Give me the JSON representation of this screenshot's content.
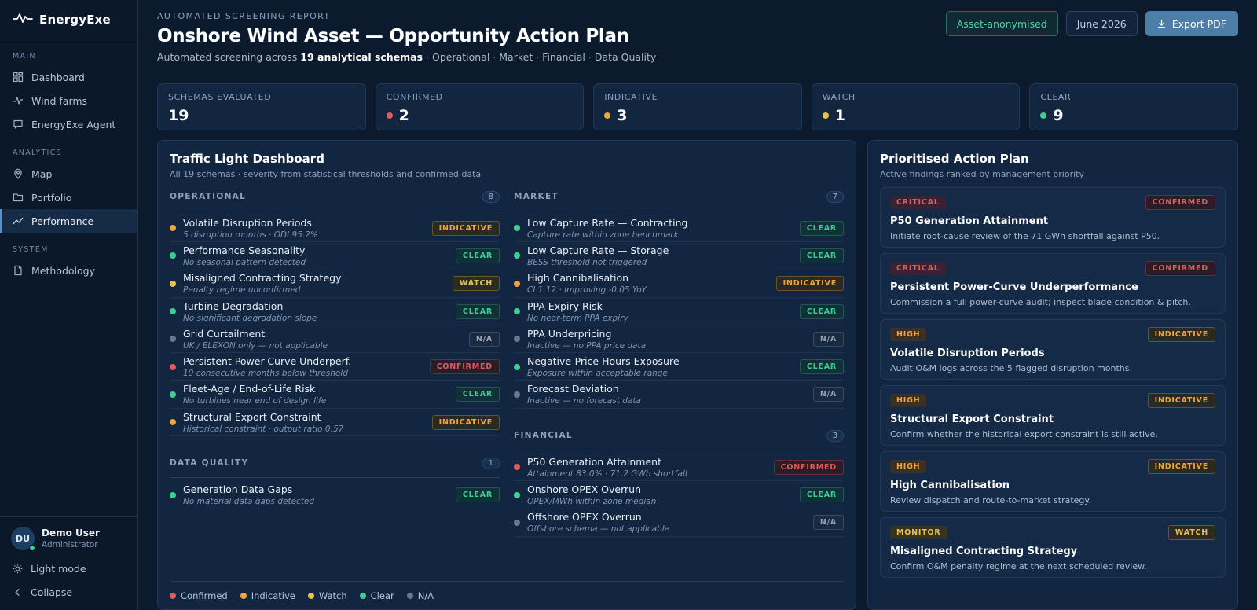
{
  "brand": {
    "name": "EnergyExe"
  },
  "sidebar": {
    "sections": [
      {
        "label": "MAIN",
        "items": [
          {
            "label": "Dashboard",
            "icon": "grid-icon"
          },
          {
            "label": "Wind farms",
            "icon": "pulse-icon"
          },
          {
            "label": "EnergyExe Agent",
            "icon": "chat-icon"
          }
        ]
      },
      {
        "label": "ANALYTICS",
        "items": [
          {
            "label": "Map",
            "icon": "pin-icon"
          },
          {
            "label": "Portfolio",
            "icon": "folder-icon"
          },
          {
            "label": "Performance",
            "icon": "trend-icon",
            "active": true
          }
        ]
      },
      {
        "label": "SYSTEM",
        "items": [
          {
            "label": "Methodology",
            "icon": "document-icon"
          }
        ]
      }
    ],
    "user": {
      "initials": "DU",
      "name": "Demo User",
      "role": "Administrator"
    },
    "light_mode": "Light mode",
    "collapse": "Collapse"
  },
  "header": {
    "eyebrow": "AUTOMATED SCREENING REPORT",
    "title": "Onshore Wind Asset — Opportunity Action Plan",
    "subtitle_prefix": "Automated screening across ",
    "subtitle_bold": "19 analytical schemas",
    "subtitle_suffix": " · Operational · Market · Financial · Data Quality",
    "anon_label": "Asset-anonymised",
    "date_label": "June 2026",
    "export_label": "Export PDF"
  },
  "stats": [
    {
      "label": "SCHEMAS EVALUATED",
      "value": "19",
      "color": ""
    },
    {
      "label": "CONFIRMED",
      "value": "2",
      "color": "red"
    },
    {
      "label": "INDICATIVE",
      "value": "3",
      "color": "orange"
    },
    {
      "label": "WATCH",
      "value": "1",
      "color": "yellow"
    },
    {
      "label": "CLEAR",
      "value": "9",
      "color": "green"
    }
  ],
  "dashboard": {
    "title": "Traffic Light Dashboard",
    "subtitle": "All 19 schemas · severity from statistical thresholds and confirmed data",
    "groups": {
      "operational": {
        "name": "OPERATIONAL",
        "count": "8",
        "rows": [
          {
            "title": "Volatile Disruption Periods",
            "desc": "5 disruption months · ODI 95.2%",
            "status": "INDICATIVE",
            "color": "orange"
          },
          {
            "title": "Performance Seasonality",
            "desc": "No seasonal pattern detected",
            "status": "CLEAR",
            "color": "green"
          },
          {
            "title": "Misaligned Contracting Strategy",
            "desc": "Penalty regime unconfirmed",
            "status": "WATCH",
            "color": "yellow"
          },
          {
            "title": "Turbine Degradation",
            "desc": "No significant degradation slope",
            "status": "CLEAR",
            "color": "green"
          },
          {
            "title": "Grid Curtailment",
            "desc": "UK / ELEXON only — not applicable",
            "status": "N/A",
            "color": "gray"
          },
          {
            "title": "Persistent Power-Curve Underperf.",
            "desc": "10 consecutive months below threshold",
            "status": "CONFIRMED",
            "color": "red"
          },
          {
            "title": "Fleet-Age / End-of-Life Risk",
            "desc": "No turbines near end of design life",
            "status": "CLEAR",
            "color": "green"
          },
          {
            "title": "Structural Export Constraint",
            "desc": "Historical constraint · output ratio 0.57",
            "status": "INDICATIVE",
            "color": "orange"
          }
        ]
      },
      "data_quality": {
        "name": "DATA QUALITY",
        "count": "1",
        "rows": [
          {
            "title": "Generation Data Gaps",
            "desc": "No material data gaps detected",
            "status": "CLEAR",
            "color": "green"
          }
        ]
      },
      "market": {
        "name": "MARKET",
        "count": "7",
        "rows": [
          {
            "title": "Low Capture Rate — Contracting",
            "desc": "Capture rate within zone benchmark",
            "status": "CLEAR",
            "color": "green"
          },
          {
            "title": "Low Capture Rate — Storage",
            "desc": "BESS threshold not triggered",
            "status": "CLEAR",
            "color": "green"
          },
          {
            "title": "High Cannibalisation",
            "desc": "CI 1.12 · improving -0.05 YoY",
            "status": "INDICATIVE",
            "color": "orange"
          },
          {
            "title": "PPA Expiry Risk",
            "desc": "No near-term PPA expiry",
            "status": "CLEAR",
            "color": "green"
          },
          {
            "title": "PPA Underpricing",
            "desc": "Inactive — no PPA price data",
            "status": "N/A",
            "color": "gray"
          },
          {
            "title": "Negative-Price Hours Exposure",
            "desc": "Exposure within acceptable range",
            "status": "CLEAR",
            "color": "green"
          },
          {
            "title": "Forecast Deviation",
            "desc": "Inactive — no forecast data",
            "status": "N/A",
            "color": "gray"
          }
        ]
      },
      "financial": {
        "name": "FINANCIAL",
        "count": "3",
        "rows": [
          {
            "title": "P50 Generation Attainment",
            "desc": "Attainment 83.0% · 71.2 GWh shortfall",
            "status": "CONFIRMED",
            "color": "red"
          },
          {
            "title": "Onshore OPEX Overrun",
            "desc": "OPEX/MWh within zone median",
            "status": "CLEAR",
            "color": "green"
          },
          {
            "title": "Offshore OPEX Overrun",
            "desc": "Offshore schema — not applicable",
            "status": "N/A",
            "color": "gray"
          }
        ]
      }
    },
    "legend": [
      {
        "label": "Confirmed",
        "color": "red"
      },
      {
        "label": "Indicative",
        "color": "orange"
      },
      {
        "label": "Watch",
        "color": "yellow"
      },
      {
        "label": "Clear",
        "color": "green"
      },
      {
        "label": "N/A",
        "color": "gray"
      }
    ]
  },
  "action_plan": {
    "title": "Prioritised Action Plan",
    "subtitle": "Active findings ranked by management priority",
    "items": [
      {
        "priority": "CRITICAL",
        "pclass": "critical",
        "status": "CONFIRMED",
        "title": "P50 Generation Attainment",
        "desc": "Initiate root-cause review of the 71 GWh shortfall against P50."
      },
      {
        "priority": "CRITICAL",
        "pclass": "critical",
        "status": "CONFIRMED",
        "title": "Persistent Power-Curve Underperformance",
        "desc": "Commission a full power-curve audit; inspect blade condition & pitch."
      },
      {
        "priority": "HIGH",
        "pclass": "high",
        "status": "INDICATIVE",
        "title": "Volatile Disruption Periods",
        "desc": "Audit O&M logs across the 5 flagged disruption months."
      },
      {
        "priority": "HIGH",
        "pclass": "high",
        "status": "INDICATIVE",
        "title": "Structural Export Constraint",
        "desc": "Confirm whether the historical export constraint is still active."
      },
      {
        "priority": "HIGH",
        "pclass": "high",
        "status": "INDICATIVE",
        "title": "High Cannibalisation",
        "desc": "Review dispatch and route-to-market strategy."
      },
      {
        "priority": "MONITOR",
        "pclass": "monitor",
        "status": "WATCH",
        "title": "Misaligned Contracting Strategy",
        "desc": "Confirm O&M penalty regime at the next scheduled review."
      }
    ]
  },
  "colors": {
    "red": "#e05a5a",
    "orange": "#f0a43a",
    "yellow": "#e8c14a",
    "green": "#3ecf8e",
    "gray": "#6b7788",
    "accent": "#4c7ea8"
  }
}
